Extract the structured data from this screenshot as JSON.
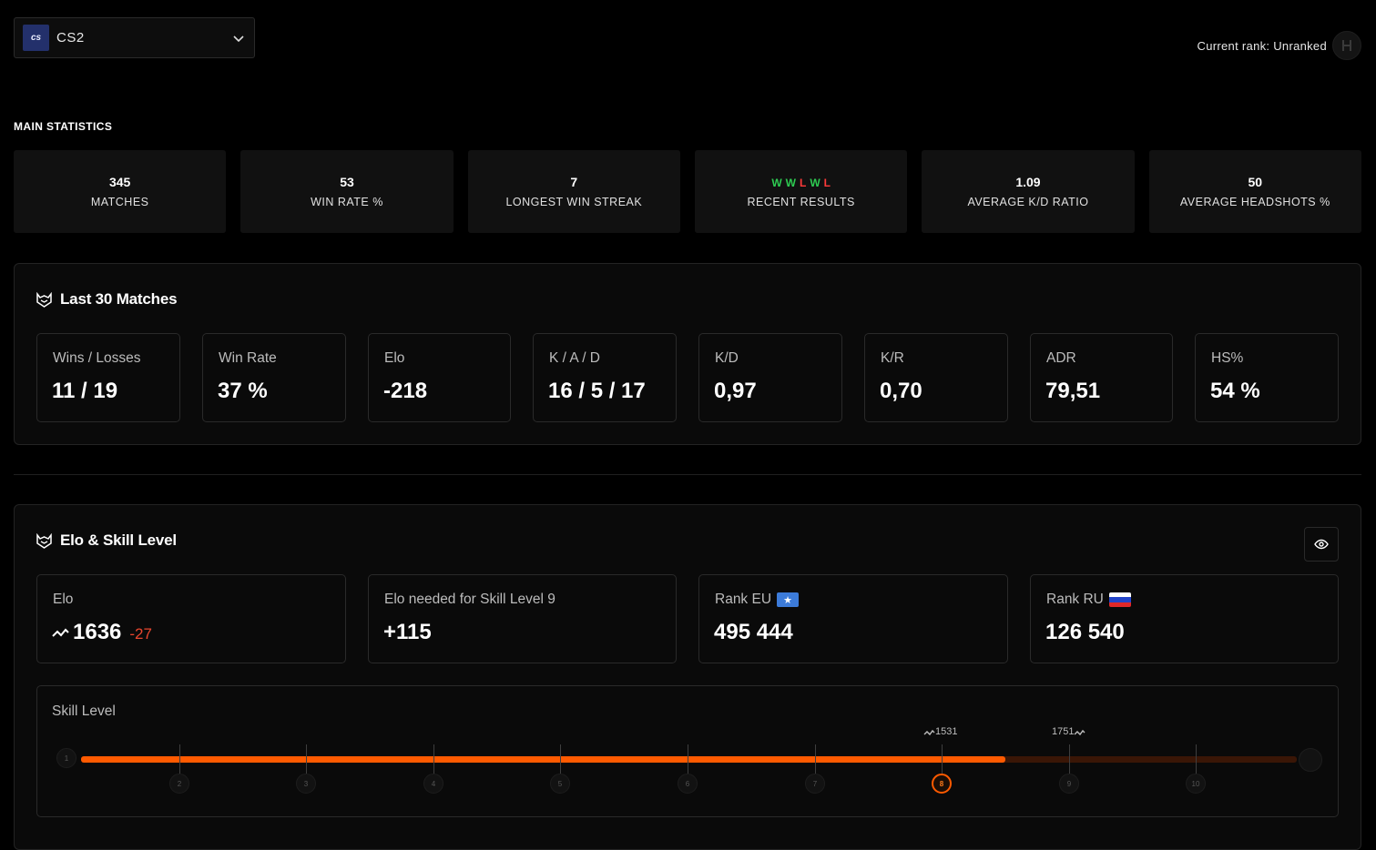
{
  "game_select": {
    "logo_text": "cs",
    "name": "CS2"
  },
  "rank": {
    "label": "Current rank: Unranked"
  },
  "main_stats": {
    "title": "MAIN STATISTICS",
    "cards": [
      {
        "value": "345",
        "label": "MATCHES"
      },
      {
        "value": "53",
        "label": "WIN RATE %"
      },
      {
        "value": "7",
        "label": "LONGEST WIN STREAK"
      },
      {
        "value": "",
        "label": "RECENT RESULTS",
        "results": [
          "W",
          "W",
          "L",
          "W",
          "L"
        ]
      },
      {
        "value": "1.09",
        "label": "AVERAGE K/D RATIO"
      },
      {
        "value": "50",
        "label": "AVERAGE HEADSHOTS %"
      }
    ]
  },
  "last30": {
    "title": "Last 30 Matches",
    "metrics": [
      {
        "label": "Wins / Losses",
        "value": "11 / 19"
      },
      {
        "label": "Win Rate",
        "value": "37 %"
      },
      {
        "label": "Elo",
        "value": "-218"
      },
      {
        "label": "K / A / D",
        "value": "16 / 5 / 17"
      },
      {
        "label": "K/D",
        "value": "0,97"
      },
      {
        "label": "K/R",
        "value": "0,70"
      },
      {
        "label": "ADR",
        "value": "79,51"
      },
      {
        "label": "HS%",
        "value": "54 %"
      }
    ]
  },
  "elo_panel": {
    "title": "Elo & Skill Level",
    "elo": {
      "label": "Elo",
      "value": "1636",
      "delta": "-27"
    },
    "needed": {
      "label": "Elo needed for Skill Level 9",
      "value": "+115"
    },
    "rank_eu": {
      "label": "Rank EU",
      "value": "495 444"
    },
    "rank_ru": {
      "label": "Rank RU",
      "value": "126 540"
    },
    "skill": {
      "label": "Skill Level",
      "current_level": 8,
      "progress_percent": 76,
      "levels": [
        "1",
        "2",
        "3",
        "4",
        "5",
        "6",
        "7",
        "8",
        "9",
        "10"
      ],
      "marker_low": "1531",
      "marker_high": "1751"
    }
  },
  "colors": {
    "accent": "#ff5a00",
    "win": "#2ecc52",
    "loss": "#ff3a3a",
    "negative": "#e8462e"
  }
}
